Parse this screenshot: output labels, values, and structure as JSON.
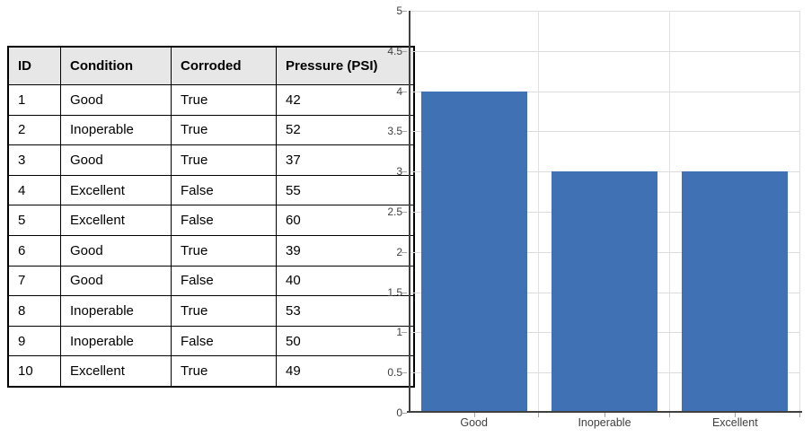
{
  "table": {
    "columns": [
      "ID",
      "Condition",
      "Corroded",
      "Pressure (PSI)"
    ],
    "rows": [
      [
        "1",
        "Good",
        "True",
        "42"
      ],
      [
        "2",
        "Inoperable",
        "True",
        "52"
      ],
      [
        "3",
        "Good",
        "True",
        "37"
      ],
      [
        "4",
        "Excellent",
        "False",
        "55"
      ],
      [
        "5",
        "Excellent",
        "False",
        "60"
      ],
      [
        "6",
        "Good",
        "True",
        "39"
      ],
      [
        "7",
        "Good",
        "False",
        "40"
      ],
      [
        "8",
        "Inoperable",
        "True",
        "53"
      ],
      [
        "9",
        "Inoperable",
        "False",
        "50"
      ],
      [
        "10",
        "Excellent",
        "True",
        "49"
      ]
    ]
  },
  "chart_data": {
    "type": "bar",
    "categories": [
      "Good",
      "Inoperable",
      "Excellent"
    ],
    "values": [
      4,
      3,
      3
    ],
    "title": "",
    "xlabel": "",
    "ylabel": "",
    "ylim": [
      0,
      5
    ],
    "ytick_step": 0.5,
    "yticks": [
      "0",
      "0.5",
      "1",
      "1.5",
      "2",
      "2.5",
      "3",
      "3.5",
      "4",
      "4.5",
      "5"
    ],
    "grid": true,
    "legend": "none",
    "bar_color": "#4171b5",
    "axis_color": "#404040",
    "grid_color": "#dcdcdc",
    "tick_color": "#a6a6a6",
    "label_color": "#404040"
  },
  "colors": {
    "background": "#ffffff",
    "table_header_bg": "#e8e7e7",
    "table_border": "#000000"
  }
}
